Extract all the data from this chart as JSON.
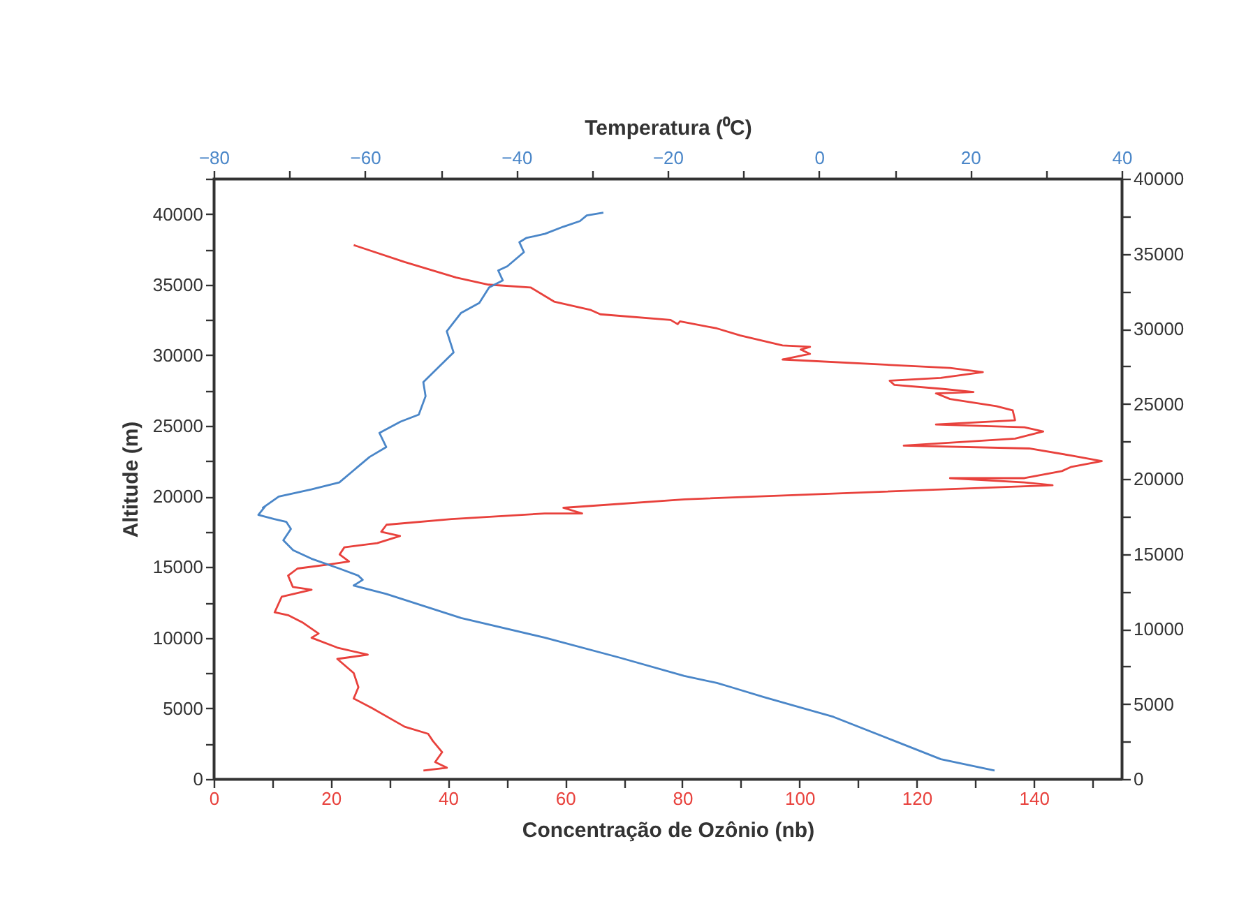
{
  "chart_data": {
    "type": "line",
    "xlabel": "Concentração de Ozônio (nb)",
    "x2label": "Temperatura (⁰C)",
    "ylabel": "Altitude (m)",
    "xlim": [
      0,
      155
    ],
    "xticks": [
      0,
      {
        "value": 10,
        "label": null
      },
      20,
      {
        "value": 30,
        "label": null
      },
      40,
      {
        "value": 50,
        "label": null
      },
      60,
      {
        "value": 70,
        "label": null
      },
      80,
      {
        "value": 90,
        "label": null
      },
      100,
      {
        "value": 110,
        "label": null
      },
      120,
      {
        "value": 130,
        "label": null
      },
      140,
      {
        "value": 150,
        "label": null
      }
    ],
    "x2lim": [
      -80,
      40
    ],
    "x2ticks": [
      -80,
      {
        "value": -70,
        "label": null
      },
      -60,
      {
        "value": -50,
        "label": null
      },
      -40,
      {
        "value": -30,
        "label": null
      },
      -20,
      {
        "value": -10,
        "label": null
      },
      0,
      {
        "value": 10,
        "label": null
      },
      20,
      {
        "value": 30,
        "label": null
      },
      40
    ],
    "ylim": [
      0,
      42500
    ],
    "yticks": [
      0,
      {
        "value": 2500,
        "label": null
      },
      5000,
      {
        "value": 7500,
        "label": null
      },
      10000,
      {
        "value": 12500,
        "label": null
      },
      15000,
      {
        "value": 17500,
        "label": null
      },
      20000,
      {
        "value": 22500,
        "label": null
      },
      25000,
      {
        "value": 27500,
        "label": null
      },
      30000,
      {
        "value": 32500,
        "label": null
      },
      35000,
      {
        "value": 37500,
        "label": null
      },
      40000,
      {
        "value": 42500,
        "label": null
      }
    ],
    "y2lim": [
      0,
      40000
    ],
    "y2ticks": [
      0,
      {
        "value": 2500,
        "label": null
      },
      5000,
      {
        "value": 7500,
        "label": null
      },
      10000,
      {
        "value": 12500,
        "label": null
      },
      15000,
      {
        "value": 17500,
        "label": null
      },
      20000,
      {
        "value": 22500,
        "label": null
      },
      25000,
      {
        "value": 27500,
        "label": null
      },
      30000,
      {
        "value": 32500,
        "label": null
      },
      35000,
      {
        "value": 37500,
        "label": null
      },
      40000
    ],
    "grid": false,
    "marker": "none",
    "line_style": "solid",
    "series": [
      {
        "color": "#e8413c",
        "x": [
          35.8,
          39.8,
          37.8,
          39.0,
          37.4,
          36.6,
          32.6,
          27.1,
          23.9,
          24.7,
          23.9,
          21.1,
          26.3,
          21.1,
          16.7,
          17.9,
          15.1,
          12.7,
          10.4,
          11.6,
          16.7,
          13.5,
          12.7,
          14.3,
          19.9,
          23.1,
          21.5,
          22.3,
          27.9,
          31.8,
          28.6,
          29.5,
          40.6,
          56.5,
          62.9,
          59.7,
          80.4,
          143.2,
          138.4,
          125.7,
          138.4,
          144.8,
          146.4,
          151.6,
          146.4,
          139.2,
          117.8,
          136.8,
          141.6,
          138.4,
          123.3,
          136.8,
          136.4,
          133.6,
          125.7,
          123.3,
          129.7,
          124.9,
          116.2,
          115.4,
          124.1,
          131.3,
          125.7,
          97.1,
          101.8,
          100.2,
          101.8,
          97.1,
          89.9,
          85.9,
          79.6,
          79.2,
          78.0,
          66.0,
          64.4,
          58.1,
          54.1,
          46.9,
          41.4,
          32.6,
          23.9
        ],
        "values": [
          600,
          800,
          1200,
          1900,
          2700,
          3200,
          3700,
          5000,
          5700,
          6500,
          7500,
          8500,
          8800,
          9300,
          10000,
          10300,
          11100,
          11600,
          11800,
          12900,
          13400,
          13600,
          14400,
          14900,
          15200,
          15400,
          15900,
          16400,
          16700,
          17200,
          17500,
          18000,
          18400,
          18800,
          18800,
          19200,
          19800,
          20800,
          21000,
          21300,
          21300,
          21800,
          22100,
          22500,
          22900,
          23400,
          23600,
          24100,
          24600,
          24900,
          25100,
          25400,
          26100,
          26400,
          26900,
          27300,
          27400,
          27600,
          27900,
          28200,
          28400,
          28800,
          29100,
          29700,
          30100,
          30400,
          30600,
          30700,
          31400,
          31900,
          32400,
          32200,
          32500,
          32900,
          33200,
          33800,
          34800,
          35000,
          35500,
          36600,
          37800
        ]
      },
      {
        "color": "#4a86c8",
        "axis": "x2",
        "x": [
          23.2,
          16.1,
          9.96,
          1.9,
          -7.3,
          -11.6,
          -13.5,
          -17.8,
          -26.4,
          -36.2,
          -47.3,
          -57.2,
          -61.5,
          -60.3,
          -60.9,
          -63.4,
          -67.1,
          -69.5,
          -70.8,
          -69.8,
          -70.4,
          -72.0,
          -74.1,
          -73.2,
          -73.5,
          -71.4,
          -67.1,
          -63.4,
          -59.4,
          -57.2,
          -58.1,
          -55.3,
          -52.9,
          -52.0,
          -52.3,
          -50.4,
          -48.3,
          -49.2,
          -47.3,
          -44.9,
          -43.6,
          -41.8,
          -42.4,
          -41.2,
          -39.0,
          -39.6,
          -38.7,
          -36.2,
          -33.8,
          -31.6,
          -30.7,
          -28.5
        ],
        "values": [
          600,
          1400,
          2700,
          4400,
          5800,
          6500,
          6800,
          7300,
          8600,
          10000,
          11400,
          13100,
          13700,
          14100,
          14400,
          14900,
          15600,
          16200,
          16900,
          17700,
          18200,
          18400,
          18700,
          19300,
          19200,
          20000,
          20500,
          21000,
          22800,
          23500,
          24500,
          25300,
          25800,
          27100,
          28100,
          29100,
          30200,
          31700,
          33000,
          33700,
          34800,
          35300,
          36000,
          36300,
          37300,
          38000,
          38300,
          38600,
          39100,
          39500,
          39900,
          40100
        ]
      }
    ]
  }
}
